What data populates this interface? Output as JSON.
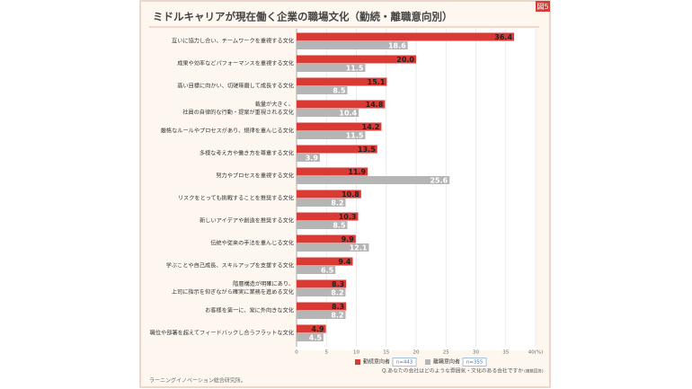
{
  "chart_data": {
    "type": "hbar",
    "title": "ミドルキャリアが現在働く企業の職場文化（勤続・離職意向別）",
    "figure_label": "図5",
    "categories": [
      [
        "互いに協力し合い、チームワークを重視する文化"
      ],
      [
        "成果や効率などパフォーマンスを重視する文化"
      ],
      [
        "高い目標に向かい、切磋琢磨して成長する文化"
      ],
      [
        "裁量が大きく、",
        "社員の自律的な行動・提案が重視される文化"
      ],
      [
        "厳格なルールやプロセスがあり、規律を重んじる文化"
      ],
      [
        "多様な考え方や働き方を尊重する文化"
      ],
      [
        "努力やプロセスを重視する文化"
      ],
      [
        "リスクをとっても挑戦することを推奨する文化"
      ],
      [
        "新しいアイデアや創造を推奨する文化"
      ],
      [
        "伝統や従来の手法を重んじる文化"
      ],
      [
        "学ぶことや自己成長、スキルアップを支援する文化"
      ],
      [
        "階層構造が明確にあり、",
        "上司に指示を仰ぎながら確実に業務を進める文化"
      ],
      [
        "お客様を第一に、常に外向きな文化"
      ],
      [
        "職位や部署を超えてフィードバックし合うフラットな文化"
      ]
    ],
    "series": [
      {
        "name": "勤続意向者",
        "n": "n=443",
        "color": "#d93a34",
        "values": [
          36.4,
          20.0,
          15.1,
          14.8,
          14.2,
          13.5,
          11.9,
          10.8,
          10.3,
          9.9,
          9.4,
          8.3,
          8.3,
          4.9
        ],
        "value_labels": [
          "36.4",
          "20.0",
          "15.1",
          "14.8",
          "14.2",
          "13.5",
          "11.9",
          "10.8",
          "10.3",
          "9.9",
          "9.4",
          "8.3",
          "8.3",
          "4.9"
        ]
      },
      {
        "name": "離職意向者",
        "n": "n=355",
        "color": "#b5b5b5",
        "values": [
          18.6,
          11.5,
          8.5,
          10.4,
          11.5,
          3.9,
          25.6,
          8.2,
          8.5,
          12.1,
          6.5,
          8.2,
          8.2,
          4.5
        ],
        "value_labels": [
          "18.6",
          "11.5",
          "8.5",
          "10.4",
          "11.5",
          "3.9",
          "25.6",
          "8.2",
          "8.5",
          "12.1",
          "6.5",
          "8.2",
          "8.2",
          "4.5"
        ]
      }
    ],
    "xlim": [
      0,
      40
    ],
    "xticks": [
      0,
      5,
      10,
      15,
      20,
      25,
      30,
      35,
      {
        "value": 40,
        "label": "40(%)"
      }
    ],
    "grid": true,
    "question": "Q.あなたの会社はどのような雰囲気・文化のある会社ですか",
    "question_note": "(複数回答)",
    "source": "ラーニングイノベーション総合研究所。"
  }
}
